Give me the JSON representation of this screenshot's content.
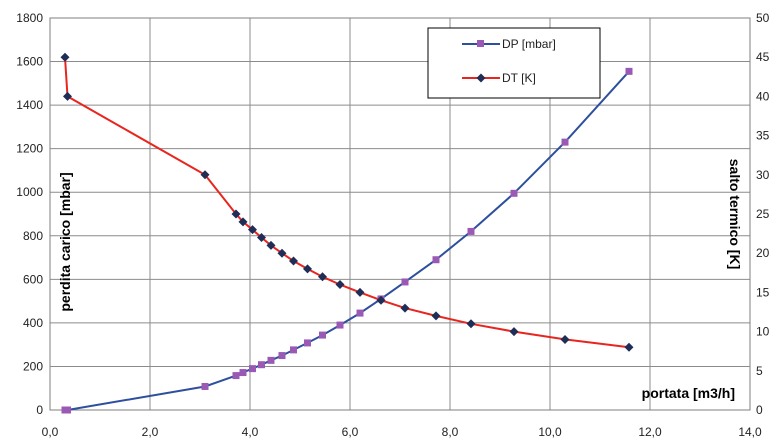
{
  "chart_data": {
    "type": "line",
    "xlabel": "portata [m3/h]",
    "ylabel": "perdita carico [mbar]",
    "y2label": "salto termico [K]",
    "xlim": [
      0,
      14
    ],
    "ylim": [
      0,
      1800
    ],
    "y2lim": [
      0,
      50
    ],
    "grid": true,
    "legend_position": "top-center",
    "x_ticks": [
      0,
      2,
      4,
      6,
      8,
      10,
      12,
      14
    ],
    "x_tick_labels": [
      "0,0",
      "2,0",
      "4,0",
      "6,0",
      "8,0",
      "10,0",
      "12,0",
      "14,0"
    ],
    "y_ticks": [
      "0",
      "200",
      "400",
      "600",
      "800",
      "1000",
      "1200",
      "1400",
      "1600",
      "1800"
    ],
    "y2_ticks": [
      "0",
      "5",
      "10",
      "15",
      "20",
      "25",
      "30",
      "35",
      "40",
      "45",
      "50"
    ],
    "series": [
      {
        "name": "DP [mbar]",
        "axis": "left",
        "color": "#2e4f9e",
        "marker_color": "#9b59b6",
        "marker": "square",
        "x": [
          0.3,
          0.35,
          3.1,
          3.72,
          3.86,
          4.05,
          4.23,
          4.42,
          4.64,
          4.87,
          5.15,
          5.45,
          5.8,
          6.2,
          6.62,
          7.1,
          7.72,
          8.42,
          9.28,
          10.3,
          11.58
        ],
        "y": [
          0,
          0,
          108,
          158,
          172,
          190,
          208,
          228,
          250,
          276,
          308,
          344,
          390,
          445,
          510,
          588,
          690,
          820,
          995,
          1230,
          1555
        ]
      },
      {
        "name": "DT [K]",
        "axis": "right",
        "color": "#e8251f",
        "marker_color": "#1f2d57",
        "marker": "diamond",
        "x": [
          0.3,
          0.35,
          3.1,
          3.72,
          3.86,
          4.05,
          4.23,
          4.42,
          4.64,
          4.87,
          5.15,
          5.45,
          5.8,
          6.2,
          6.62,
          7.1,
          7.72,
          8.42,
          9.28,
          10.3,
          11.58
        ],
        "y": [
          45,
          40,
          30,
          25,
          24,
          23,
          22,
          21,
          20,
          19,
          18,
          17,
          16,
          15,
          14,
          13,
          12,
          11,
          10,
          9,
          8
        ]
      }
    ]
  }
}
